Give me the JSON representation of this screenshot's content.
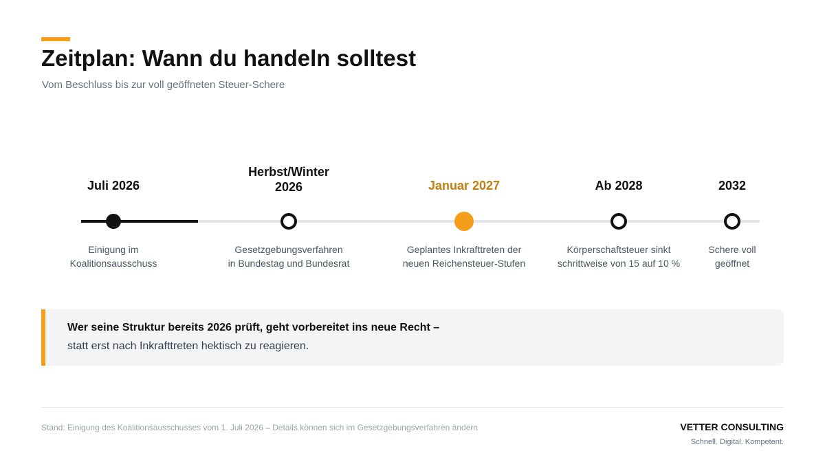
{
  "header": {
    "title": "Zeitplan: Wann du handeln solltest",
    "subtitle": "Vom Beschluss bis zur voll geöffneten Steuer-Schere"
  },
  "timeline": {
    "milestones": [
      {
        "date_lines": [
          "Juli 2026"
        ],
        "description_lines": [
          "Einigung im",
          "Koalitionsausschuss"
        ],
        "state": "done"
      },
      {
        "date_lines": [
          "Herbst/Winter",
          "2026"
        ],
        "description_lines": [
          "Gesetzgebungsverfahren",
          "in Bundestag und Bundesrat"
        ],
        "state": "upcoming"
      },
      {
        "date_lines": [
          "Januar 2027"
        ],
        "description_lines": [
          "Geplantes Inkrafttreten der",
          "neuen Reichensteuer-Stufen"
        ],
        "state": "highlight"
      },
      {
        "date_lines": [
          "Ab 2028"
        ],
        "description_lines": [
          "Körperschaftsteuer sinkt",
          "schrittweise von 15 auf 10 %"
        ],
        "state": "upcoming"
      },
      {
        "date_lines": [
          "2032"
        ],
        "description_lines": [
          "Schere voll",
          "geöffnet"
        ],
        "state": "upcoming"
      }
    ],
    "colors": {
      "accent": "#f59e1b",
      "accent_text": "#c17f12",
      "done": "#111111",
      "track": "#e5e7eb"
    }
  },
  "callout": {
    "strong": "Wer seine Struktur bereits 2026 prüft, geht vorbereitet ins neue Recht –",
    "text": "statt erst nach Inkrafttreten hektisch zu reagieren."
  },
  "footer": {
    "note": "Stand: Einigung des Koalitionsausschusses vom 1. Juli 2026 – Details können sich im Gesetzgebungsverfahren ändern",
    "brand": "VETTER CONSULTING",
    "tagline": "Schnell. Digital. Kompetent."
  }
}
